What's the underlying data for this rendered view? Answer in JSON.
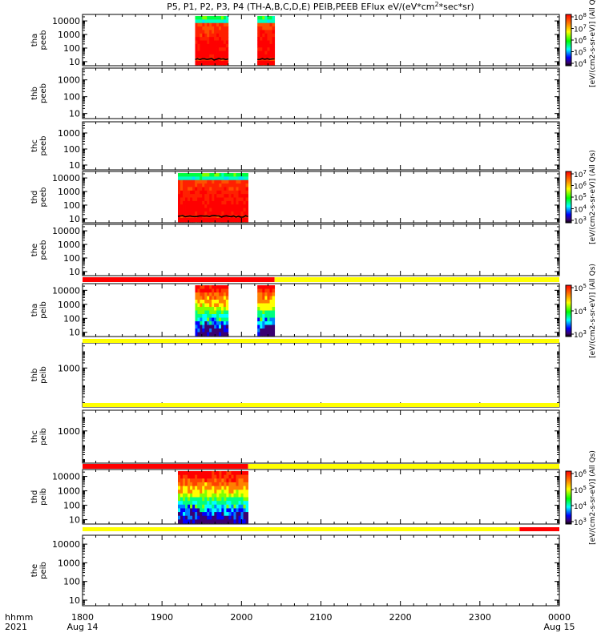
{
  "chart_data": {
    "type": "heatmap",
    "title": "P5, P1, P2, P3, P4 (TH-A,B,C,D,E) PEIB,PEEB EFlux eV/(eV*cm^2*sec*sr)",
    "title_parts": {
      "before": "P5, P1, P2, P3, P4 (TH-A,B,C,D,E) PEIB,PEEB EFlux eV/(eV*cm",
      "sup1": "2",
      "mid": "*sec*sr)"
    },
    "x_axis": {
      "corner_labels": [
        "hhmm",
        "2021"
      ],
      "tick_labels": [
        "1800",
        "1900",
        "2000",
        "2100",
        "2200",
        "2300",
        "0000"
      ],
      "date_labels": [
        "Aug 14",
        "",
        "",
        "",
        "",
        "",
        "Aug 15"
      ],
      "range": [
        "2021-08-14 18:00",
        "2021-08-15 00:00"
      ]
    },
    "y_scale": "log",
    "panels": [
      {
        "id": "tha-peeb",
        "label": [
          "tha",
          "peeb"
        ],
        "yticks": [
          "10",
          "100",
          "1000",
          "10000"
        ],
        "yrange": [
          5,
          30000
        ],
        "has_data": true,
        "data_intervals": [
          [
            "19:25",
            "19:50"
          ],
          [
            "20:12",
            "20:25"
          ]
        ],
        "colorbar_id": "cb1"
      },
      {
        "id": "thb-peeb",
        "label": [
          "thb",
          "peeb"
        ],
        "yticks": [
          "10",
          "100",
          "1000"
        ],
        "yrange": [
          5,
          5000
        ],
        "has_data": false,
        "data_intervals": []
      },
      {
        "id": "thc-peeb",
        "label": [
          "thc",
          "peeb"
        ],
        "yticks": [
          "10",
          "100",
          "1000"
        ],
        "yrange": [
          5,
          5000
        ],
        "has_data": false,
        "data_intervals": []
      },
      {
        "id": "thd-peeb",
        "label": [
          "thd",
          "peeb"
        ],
        "yticks": [
          "10",
          "100",
          "1000",
          "10000"
        ],
        "yrange": [
          5,
          30000
        ],
        "has_data": true,
        "data_intervals": [
          [
            "19:12",
            "20:05"
          ]
        ],
        "colorbar_id": "cb2"
      },
      {
        "id": "the-peeb",
        "label": [
          "the",
          "peeb"
        ],
        "yticks": [
          "10",
          "100",
          "1000",
          "10000"
        ],
        "yrange": [
          5,
          30000
        ],
        "has_data": false,
        "data_intervals": []
      },
      {
        "id": "tha-peib",
        "label": [
          "tha",
          "peib"
        ],
        "yticks": [
          "10",
          "100",
          "1000",
          "10000"
        ],
        "yrange": [
          5,
          30000
        ],
        "has_data": true,
        "data_intervals": [
          [
            "19:25",
            "19:50"
          ],
          [
            "20:12",
            "20:25"
          ]
        ],
        "colorbar_id": "cb3"
      },
      {
        "id": "thb-peib",
        "label": [
          "thb",
          "peib"
        ],
        "yticks": [
          "1000"
        ],
        "yrange": [
          5,
          30000
        ],
        "has_data": false,
        "data_intervals": []
      },
      {
        "id": "thc-peib",
        "label": [
          "thc",
          "peib"
        ],
        "yticks": [
          "1000"
        ],
        "yrange": [
          5,
          30000
        ],
        "has_data": false,
        "data_intervals": []
      },
      {
        "id": "thd-peib",
        "label": [
          "thd",
          "peib"
        ],
        "yticks": [
          "10",
          "100",
          "1000",
          "10000"
        ],
        "yrange": [
          5,
          30000
        ],
        "has_data": true,
        "data_intervals": [
          [
            "19:12",
            "20:05"
          ]
        ],
        "colorbar_id": "cb4"
      },
      {
        "id": "the-peib",
        "label": [
          "the",
          "peib"
        ],
        "yticks": [
          "10",
          "100",
          "1000",
          "10000"
        ],
        "yrange": [
          5,
          30000
        ],
        "has_data": false,
        "data_intervals": []
      }
    ],
    "flag_bars": [
      {
        "after_panel": "the-peeb",
        "segments": [
          {
            "from": "18:00",
            "to": "20:25",
            "color": "#ff0000"
          },
          {
            "from": "20:25",
            "to": "00:00",
            "color": "#ffff00"
          }
        ]
      },
      {
        "after_panel": "tha-peib",
        "segments": [
          {
            "from": "18:00",
            "to": "00:00",
            "color": "#ffff00"
          }
        ]
      },
      {
        "after_panel": "thb-peib",
        "segments": [
          {
            "from": "18:00",
            "to": "00:00",
            "color": "#ffff00"
          }
        ]
      },
      {
        "after_panel": "thc-peib",
        "segments": [
          {
            "from": "18:00",
            "to": "20:05",
            "color": "#ff0000"
          },
          {
            "from": "20:05",
            "to": "00:00",
            "color": "#ffff00"
          }
        ]
      },
      {
        "after_panel": "thd-peib",
        "segments": [
          {
            "from": "18:00",
            "to": "23:30",
            "color": "#ffff00"
          },
          {
            "from": "23:30",
            "to": "00:00",
            "color": "#ff0000"
          }
        ]
      }
    ],
    "colorbars": [
      {
        "id": "cb1",
        "ticks": [
          "10^4",
          "10^5",
          "10^6",
          "10^7",
          "10^8"
        ]
      },
      {
        "id": "cb2",
        "ticks": [
          "10^3",
          "10^4",
          "10^5",
          "10^6",
          "10^7"
        ]
      },
      {
        "id": "cb3",
        "ticks": [
          "10^3",
          "10^4",
          "10^5"
        ]
      },
      {
        "id": "cb4",
        "ticks": [
          "10^3",
          "10^4",
          "10^5",
          "10^6"
        ]
      }
    ],
    "colorbar_labels": [
      {
        "text": "[eV/(cm2-s-sr-eV)] (All Qs)",
        "spans_colorbars": [
          "cb1"
        ]
      },
      {
        "text": "[eV/(cm2-s-sr-eV)] (All Qs)",
        "spans_colorbars": [
          "cb2"
        ]
      },
      {
        "text": "[eV/(cm2-s-sr-eV)] (All Qs)",
        "spans_colorbars": [
          "cb3"
        ]
      },
      {
        "text": "[eV/(cm2-s-sr-eV)] (All Qs)",
        "spans_colorbars": [
          "cb4"
        ]
      }
    ],
    "colors": {
      "flag_red": "#ff0000",
      "flag_yellow": "#ffff00",
      "axis": "#000000",
      "colormap": "rainbow (black-purple-blue-cyan-green-yellow-red)"
    }
  }
}
